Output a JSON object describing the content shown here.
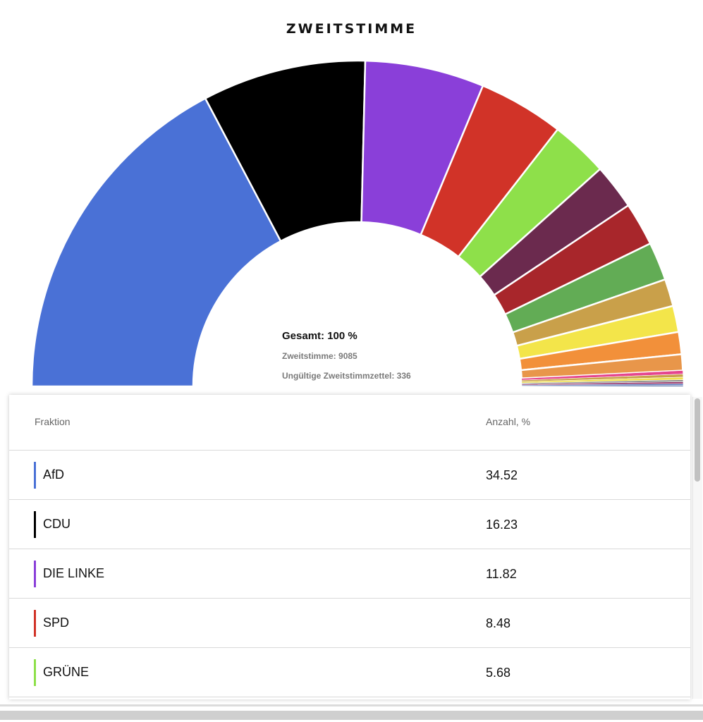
{
  "chart_data": {
    "type": "pie",
    "variant": "semi-donut",
    "title": "ZWEITSTIMME",
    "center_total": "Gesamt: 100 %",
    "center_votes": "Zweitstimme: 9085",
    "center_invalid": "Ungültige Zweitstimmzettel: 336",
    "slices": [
      {
        "value": 34.52,
        "color": "#4a71d6"
      },
      {
        "value": 16.23,
        "color": "#000000"
      },
      {
        "value": 11.82,
        "color": "#8a3fd9"
      },
      {
        "value": 8.48,
        "color": "#d13328"
      },
      {
        "value": 5.68,
        "color": "#8ee04a"
      },
      {
        "value": 4.5,
        "color": "#6b2a4e"
      },
      {
        "value": 4.3,
        "color": "#a8262b"
      },
      {
        "value": 3.8,
        "color": "#62ac55"
      },
      {
        "value": 2.7,
        "color": "#c9a04a"
      },
      {
        "value": 2.6,
        "color": "#f3e54a"
      },
      {
        "value": 2.2,
        "color": "#f2903a"
      },
      {
        "value": 1.6,
        "color": "#e8964a"
      },
      {
        "value": 0.35,
        "color": "#e5458e"
      },
      {
        "value": 0.3,
        "color": "#c9a24b"
      },
      {
        "value": 0.25,
        "color": "#f0e04a"
      },
      {
        "value": 0.2,
        "color": "#8e8e8e"
      },
      {
        "value": 0.2,
        "color": "#9a3c6e"
      },
      {
        "value": 0.15,
        "color": "#4d6db8"
      },
      {
        "value": 0.1,
        "color": "#2a4b8a"
      }
    ]
  },
  "table": {
    "header_fraktion": "Fraktion",
    "header_anzahl": "Anzahl, %",
    "rows": [
      {
        "name": "AfD",
        "value": "34.52",
        "color": "#4a71d6"
      },
      {
        "name": "CDU",
        "value": "16.23",
        "color": "#000000"
      },
      {
        "name": "DIE LINKE",
        "value": "11.82",
        "color": "#8a3fd9"
      },
      {
        "name": "SPD",
        "value": "8.48",
        "color": "#d13328"
      },
      {
        "name": "GRÜNE",
        "value": "5.68",
        "color": "#8ee04a"
      }
    ]
  }
}
